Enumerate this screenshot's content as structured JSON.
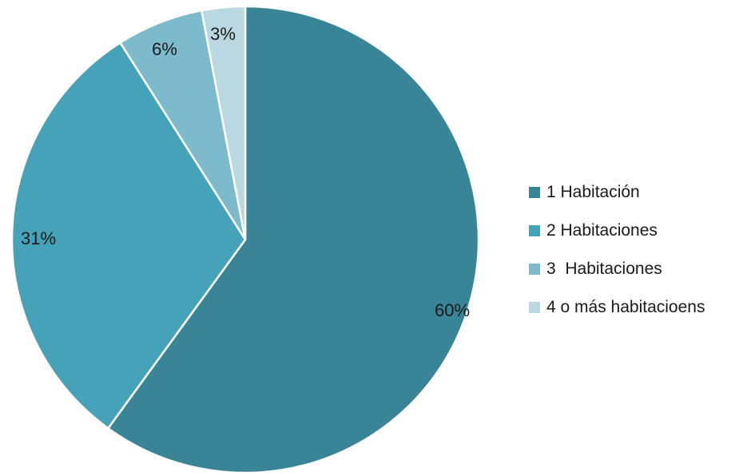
{
  "chart_data": {
    "type": "pie",
    "categories": [
      "1 Habitación",
      "2 Habitaciones",
      "3  Habitaciones",
      "4 o más habitacioens"
    ],
    "values": [
      60,
      31,
      6,
      3
    ],
    "value_labels": [
      "60%",
      "31%",
      "6%",
      "3%"
    ],
    "colors": [
      "#3A8498",
      "#46A2B8",
      "#7DBACC",
      "#B9D8E2"
    ],
    "legend_position": "right",
    "start_angle": "12 o'clock",
    "direction": "clockwise"
  }
}
